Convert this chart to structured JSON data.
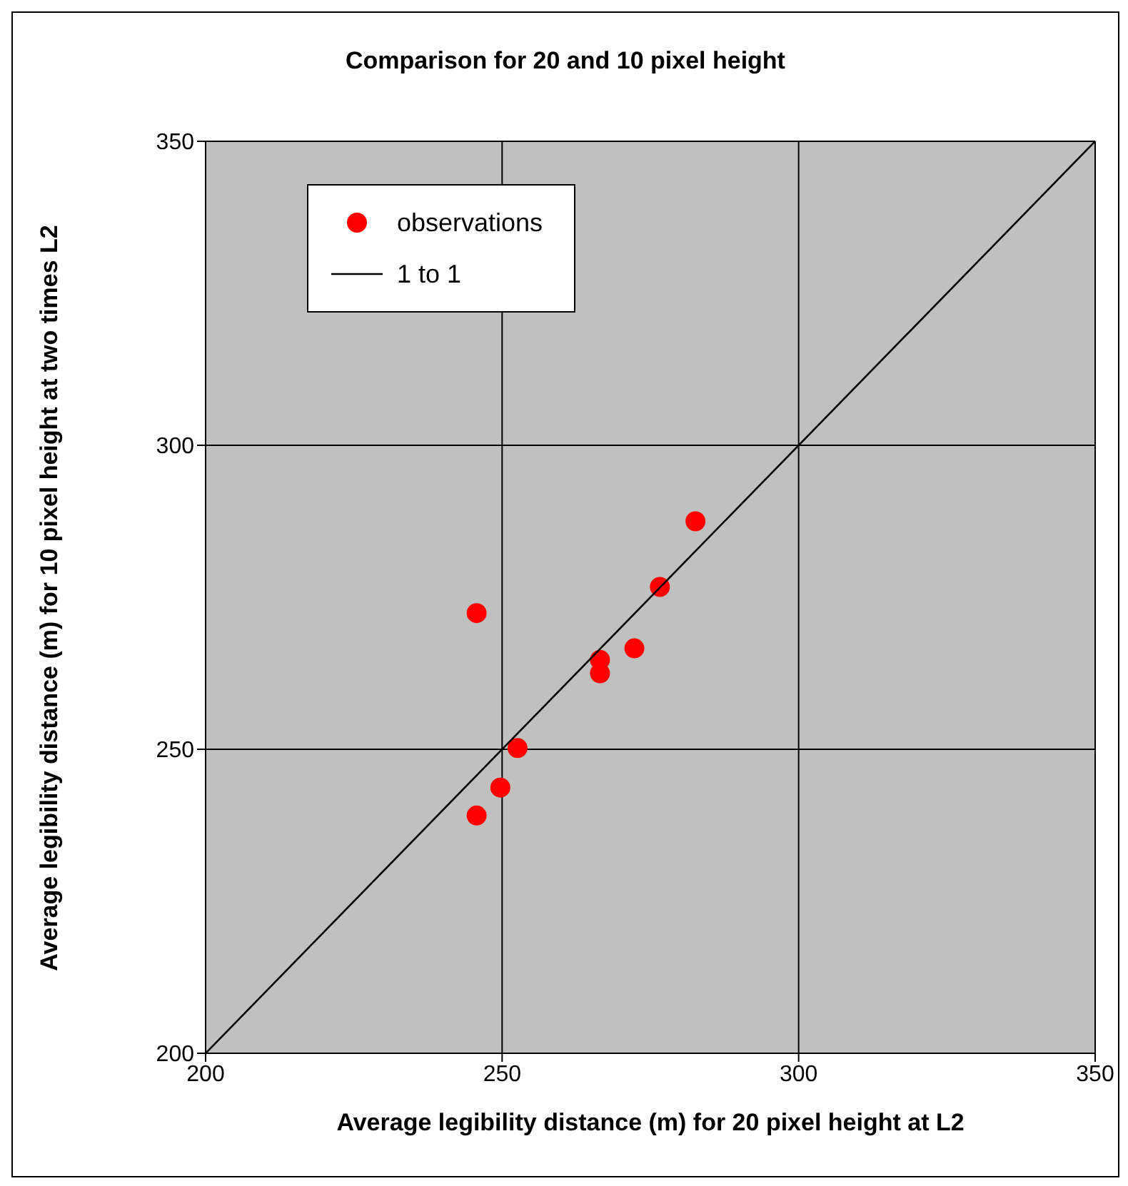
{
  "chart_data": {
    "type": "scatter",
    "title": "Comparison for 20 and 10 pixel height",
    "xlabel": "Average legibility distance (m) for 20 pixel height at L2",
    "ylabel": "Average legibility distance (m) for 10 pixel height at two times L2",
    "xlim": [
      200,
      350
    ],
    "ylim": [
      200,
      350
    ],
    "xticks": [
      200,
      250,
      300,
      350
    ],
    "yticks": [
      200,
      250,
      300,
      350
    ],
    "grid": true,
    "legend": "top left",
    "series": [
      {
        "name": "observations",
        "marker": "circle",
        "color": "#ff0000",
        "x": [
          245.7,
          245.7,
          249.7,
          252.6,
          266.5,
          266.5,
          272.3,
          276.6,
          282.6
        ],
        "values": [
          272.4,
          239.1,
          243.7,
          250.2,
          264.7,
          262.5,
          266.6,
          276.7,
          287.5
        ]
      },
      {
        "name": "1 to 1",
        "type": "line",
        "marker": "none",
        "color": "#000000",
        "x": [
          200,
          350
        ],
        "values": [
          200,
          350
        ]
      }
    ]
  }
}
